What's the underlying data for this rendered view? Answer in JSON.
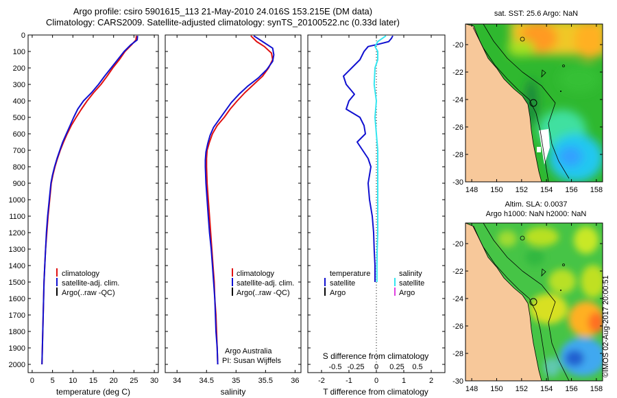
{
  "header": {
    "line1": "Argo profile: csiro 5901615_113 21-May-2010 24.016S 153.215E (DM data)",
    "line2": "Climatology: CARS2009. Satellite-adjusted climatology: synTS_20100522.nc (0.33d later)"
  },
  "side_text": "©IMOS 02-Aug-2017 20:00:51",
  "colors": {
    "clim": "#e01010",
    "sat": "#1010d0",
    "argo": "#000000",
    "sal_sat": "#33e6f0",
    "sal_argo": "#e040e0"
  },
  "chart_data": [
    {
      "type": "line",
      "id": "temperature",
      "xlabel": "temperature (deg C)",
      "ylim": [
        0,
        2050
      ],
      "xlim": [
        -1,
        31
      ],
      "xticks": [
        0,
        5,
        10,
        15,
        20,
        25,
        30
      ],
      "yticks": [
        0,
        100,
        200,
        300,
        400,
        500,
        600,
        700,
        800,
        900,
        1000,
        1100,
        1200,
        1300,
        1400,
        1500,
        1600,
        1700,
        1800,
        1900,
        2000
      ],
      "legend": [
        "climatology",
        "satellite-adj. clim.",
        "Argo(..raw -QC)"
      ],
      "series": [
        {
          "name": "climatology",
          "color": "clim",
          "points": [
            [
              25.6,
              5
            ],
            [
              25.5,
              30
            ],
            [
              24.4,
              60
            ],
            [
              22.8,
              100
            ],
            [
              21.4,
              150
            ],
            [
              19.8,
              200
            ],
            [
              18.4,
              250
            ],
            [
              16.9,
              300
            ],
            [
              15.1,
              350
            ],
            [
              13.5,
              400
            ],
            [
              12.1,
              450
            ],
            [
              10.8,
              500
            ],
            [
              9.6,
              550
            ],
            [
              8.6,
              600
            ],
            [
              7.7,
              650
            ],
            [
              6.9,
              700
            ],
            [
              6.2,
              750
            ],
            [
              5.6,
              800
            ],
            [
              5.1,
              850
            ],
            [
              4.7,
              900
            ],
            [
              4.3,
              1000
            ],
            [
              3.9,
              1100
            ],
            [
              3.6,
              1200
            ],
            [
              3.3,
              1300
            ],
            [
              3.1,
              1400
            ],
            [
              2.9,
              1500
            ],
            [
              2.8,
              1600
            ],
            [
              2.7,
              1700
            ],
            [
              2.6,
              1800
            ],
            [
              2.5,
              1900
            ],
            [
              2.4,
              2000
            ]
          ]
        },
        {
          "name": "satellite-adj. clim.",
          "color": "sat",
          "points": [
            [
              25.9,
              5
            ],
            [
              25.8,
              30
            ],
            [
              24.2,
              60
            ],
            [
              22.6,
              100
            ],
            [
              21.0,
              150
            ],
            [
              19.4,
              200
            ],
            [
              17.8,
              250
            ],
            [
              16.3,
              300
            ],
            [
              14.6,
              350
            ],
            [
              12.6,
              400
            ],
            [
              11.2,
              450
            ],
            [
              10.2,
              500
            ],
            [
              9.3,
              550
            ],
            [
              8.4,
              600
            ],
            [
              7.5,
              650
            ],
            [
              6.8,
              700
            ],
            [
              6.1,
              750
            ],
            [
              5.5,
              800
            ],
            [
              5.0,
              850
            ],
            [
              4.6,
              900
            ],
            [
              4.2,
              1000
            ],
            [
              3.8,
              1100
            ],
            [
              3.5,
              1200
            ],
            [
              3.3,
              1300
            ],
            [
              3.1,
              1400
            ],
            [
              2.9,
              1500
            ],
            [
              2.8,
              1600
            ],
            [
              2.7,
              1700
            ],
            [
              2.6,
              1800
            ],
            [
              2.5,
              1900
            ],
            [
              2.4,
              2000
            ]
          ]
        }
      ]
    },
    {
      "type": "line",
      "id": "salinity",
      "xlabel": "salinity",
      "ylim": [
        0,
        2050
      ],
      "xlim": [
        33.8,
        36.1
      ],
      "xticks": [
        34,
        34.5,
        35,
        35.5,
        36
      ],
      "legend": [
        "climatology",
        "satellite-adj. clim.",
        "Argo(..raw -QC)"
      ],
      "annotation": [
        "Argo Australia",
        "PI: Susan Wijffels"
      ],
      "series": [
        {
          "name": "climatology",
          "color": "clim",
          "points": [
            [
              35.25,
              5
            ],
            [
              35.35,
              40
            ],
            [
              35.48,
              70
            ],
            [
              35.6,
              110
            ],
            [
              35.62,
              150
            ],
            [
              35.55,
              200
            ],
            [
              35.45,
              250
            ],
            [
              35.3,
              300
            ],
            [
              35.15,
              350
            ],
            [
              35.02,
              400
            ],
            [
              34.9,
              450
            ],
            [
              34.8,
              500
            ],
            [
              34.68,
              550
            ],
            [
              34.6,
              600
            ],
            [
              34.55,
              650
            ],
            [
              34.51,
              700
            ],
            [
              34.5,
              750
            ],
            [
              34.5,
              800
            ],
            [
              34.51,
              900
            ],
            [
              34.53,
              1000
            ],
            [
              34.55,
              1100
            ],
            [
              34.57,
              1200
            ],
            [
              34.59,
              1300
            ],
            [
              34.61,
              1400
            ],
            [
              34.63,
              1500
            ],
            [
              34.64,
              1600
            ],
            [
              34.66,
              1700
            ],
            [
              34.67,
              1800
            ],
            [
              34.68,
              1900
            ],
            [
              34.69,
              2000
            ]
          ]
        },
        {
          "name": "satellite-adj. clim.",
          "color": "sat",
          "points": [
            [
              35.3,
              5
            ],
            [
              35.45,
              40
            ],
            [
              35.62,
              80
            ],
            [
              35.64,
              120
            ],
            [
              35.62,
              160
            ],
            [
              35.52,
              210
            ],
            [
              35.38,
              260
            ],
            [
              35.2,
              310
            ],
            [
              35.05,
              360
            ],
            [
              34.92,
              410
            ],
            [
              34.82,
              460
            ],
            [
              34.72,
              510
            ],
            [
              34.62,
              560
            ],
            [
              34.56,
              610
            ],
            [
              34.52,
              660
            ],
            [
              34.49,
              710
            ],
            [
              34.48,
              760
            ],
            [
              34.48,
              800
            ],
            [
              34.49,
              900
            ],
            [
              34.51,
              1000
            ],
            [
              34.53,
              1100
            ],
            [
              34.55,
              1200
            ],
            [
              34.58,
              1300
            ],
            [
              34.6,
              1400
            ],
            [
              34.62,
              1500
            ],
            [
              34.64,
              1600
            ],
            [
              34.65,
              1700
            ],
            [
              34.66,
              1800
            ],
            [
              34.68,
              1900
            ],
            [
              34.69,
              2000
            ]
          ]
        }
      ]
    },
    {
      "type": "line",
      "id": "difference",
      "xlabel": "T difference from climatology",
      "xlabel_top": "S difference from climatology",
      "ylim": [
        0,
        2050
      ],
      "xlim": [
        -2.5,
        2.5
      ],
      "xticks": [
        -2,
        -1,
        0,
        1,
        2
      ],
      "xticks_top": [
        {
          "v": -1.5,
          "t": "-0.5"
        },
        {
          "v": -0.75,
          "t": "-0.25"
        },
        {
          "v": 0,
          "t": "0"
        },
        {
          "v": 0.75,
          "t": "0.25"
        },
        {
          "v": 1.5,
          "t": "0.5"
        }
      ],
      "legend_temperature": {
        "title": "temperature",
        "items": [
          "satellite",
          "Argo"
        ]
      },
      "legend_salinity": {
        "title": "salinity",
        "items": [
          "satellite",
          "Argo"
        ]
      },
      "series": [
        {
          "name": "temperature satellite",
          "color": "sat",
          "points": [
            [
              0.6,
              5
            ],
            [
              0.55,
              20
            ],
            [
              0.45,
              40
            ],
            [
              0.1,
              55
            ],
            [
              -0.3,
              70
            ],
            [
              -0.45,
              100
            ],
            [
              -0.6,
              150
            ],
            [
              -0.9,
              200
            ],
            [
              -1.2,
              250
            ],
            [
              -1.1,
              300
            ],
            [
              -0.8,
              360
            ],
            [
              -1.0,
              400
            ],
            [
              -1.1,
              450
            ],
            [
              -0.6,
              500
            ],
            [
              -0.45,
              550
            ],
            [
              -0.4,
              600
            ],
            [
              -0.7,
              650
            ],
            [
              -0.5,
              700
            ],
            [
              -0.3,
              750
            ],
            [
              -0.2,
              800
            ],
            [
              -0.3,
              900
            ],
            [
              -0.25,
              1000
            ],
            [
              -0.15,
              1100
            ],
            [
              -0.1,
              1200
            ],
            [
              -0.08,
              1300
            ],
            [
              -0.05,
              1400
            ],
            [
              -0.05,
              1450
            ],
            [
              -0.05,
              1500
            ]
          ]
        },
        {
          "name": "salinity satellite",
          "color": "sal_sat",
          "points": [
            [
              0.35,
              5
            ],
            [
              0.05,
              40
            ],
            [
              -0.05,
              70
            ],
            [
              0.05,
              100
            ],
            [
              0.05,
              150
            ],
            [
              -0.05,
              200
            ],
            [
              -0.08,
              300
            ],
            [
              0.0,
              400
            ],
            [
              -0.05,
              500
            ],
            [
              0.0,
              600
            ],
            [
              0.05,
              700
            ],
            [
              0.05,
              800
            ],
            [
              0.05,
              900
            ],
            [
              0.05,
              1000
            ],
            [
              0.05,
              1100
            ],
            [
              0.05,
              1200
            ],
            [
              0.03,
              1300
            ],
            [
              0.02,
              1400
            ],
            [
              0.02,
              1500
            ]
          ]
        }
      ]
    },
    {
      "type": "heatmap",
      "id": "sst_map",
      "title": "sat. SST: 25.6  Argo: NaN",
      "xlim": [
        147.5,
        158.5
      ],
      "ylim": [
        -30,
        -18.5
      ],
      "xticks": [
        148,
        150,
        152,
        154,
        156,
        158
      ],
      "yticks": [
        -20,
        -22,
        -24,
        -26,
        -28,
        -30
      ],
      "argo_position": [
        153.2,
        -24.0
      ]
    },
    {
      "type": "heatmap",
      "id": "sla_map",
      "title": "Altim. SLA: 0.0037",
      "subtitle": "Argo h1000: NaN h2000: NaN",
      "xlim": [
        147.5,
        158.5
      ],
      "ylim": [
        -30,
        -18.5
      ],
      "xticks": [
        148,
        150,
        152,
        154,
        156,
        158
      ],
      "yticks": [
        -20,
        -22,
        -24,
        -26,
        -28,
        -30
      ],
      "argo_position": [
        153.2,
        -24.0
      ]
    }
  ]
}
